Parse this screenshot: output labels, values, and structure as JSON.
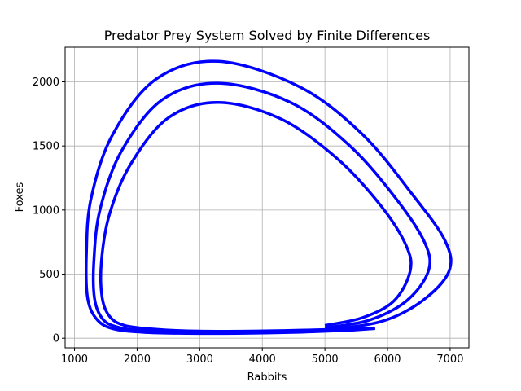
{
  "chart_data": {
    "type": "line",
    "title": "Predator Prey System Solved by Finite Differences",
    "xlabel": "Rabbits",
    "ylabel": "Foxes",
    "xlim": [
      850,
      7300
    ],
    "ylim": [
      -75,
      2270
    ],
    "xticks": [
      1000,
      2000,
      3000,
      4000,
      5000,
      6000,
      7000
    ],
    "yticks": [
      0,
      500,
      1000,
      1500,
      2000
    ],
    "grid": true,
    "line_color": "#0000ff",
    "series": [
      {
        "x": [
          5000,
          5600,
          6100,
          6360,
          6300,
          5900,
          5200,
          4300,
          3300,
          2500,
          1900,
          1560,
          1430,
          1440,
          1560,
          1800,
          2300,
          3000,
          3800,
          4600,
          5400,
          5800
        ],
        "y": [
          100,
          160,
          290,
          520,
          720,
          1030,
          1400,
          1710,
          1840,
          1720,
          1360,
          970,
          600,
          320,
          170,
          100,
          70,
          55,
          55,
          62,
          72,
          78
        ]
      },
      {
        "x": [
          5000,
          5700,
          6300,
          6650,
          6600,
          6150,
          5400,
          4450,
          3300,
          2400,
          1750,
          1410,
          1310,
          1320,
          1450,
          1700,
          2200,
          2900,
          3700,
          4600,
          5400,
          5800
        ],
        "y": [
          80,
          140,
          290,
          520,
          740,
          1080,
          1500,
          1840,
          1990,
          1860,
          1460,
          1010,
          610,
          310,
          150,
          85,
          55,
          45,
          45,
          52,
          66,
          76
        ]
      },
      {
        "x": [
          5000,
          5900,
          6550,
          6980,
          6920,
          6400,
          5600,
          4600,
          3300,
          2300,
          1600,
          1260,
          1190,
          1210,
          1370,
          1650,
          2150,
          2800,
          3600,
          4500,
          5300,
          5800
        ],
        "y": [
          62,
          130,
          290,
          520,
          760,
          1120,
          1590,
          1960,
          2160,
          2020,
          1580,
          1080,
          650,
          310,
          140,
          70,
          45,
          38,
          38,
          46,
          60,
          76
        ]
      }
    ]
  }
}
